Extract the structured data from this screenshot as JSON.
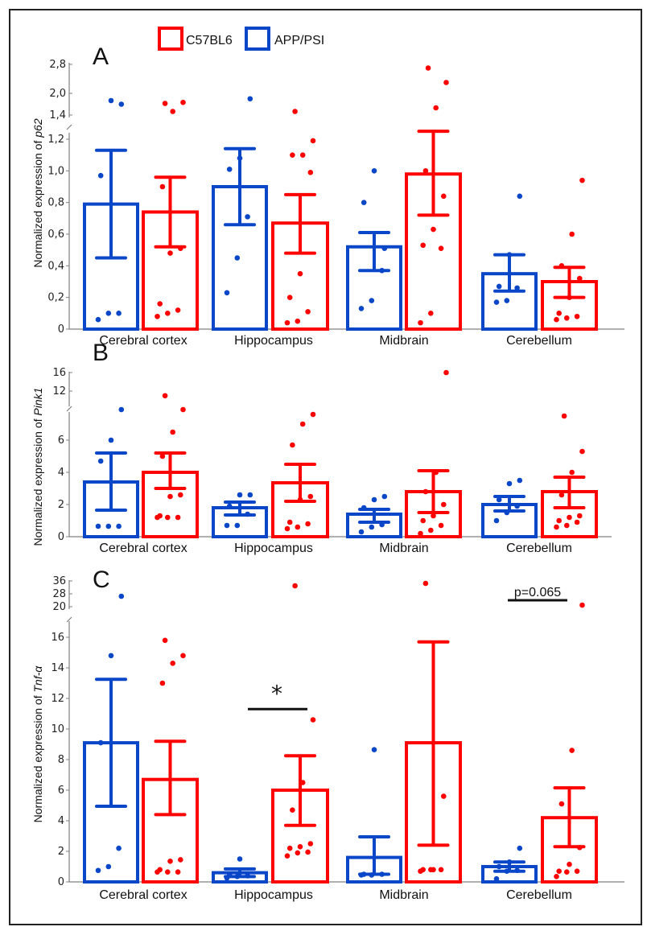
{
  "legend": [
    {
      "label": "C57BL6",
      "color": "#ff0000"
    },
    {
      "label": "APP/PSI",
      "color": "#0a46c8"
    }
  ],
  "colors": {
    "C57BL6": "#ff0000",
    "APP/PSI": "#0a46c8",
    "axis": "#808080",
    "text": "#111111"
  },
  "chart_data": [
    {
      "type": "bar",
      "panel": "A",
      "ylabel_prefix": "Normalized expression of ",
      "ylabel_gene": "p62",
      "categories": [
        "Cerebral cortex",
        "Hippocampus",
        "Midbrain",
        "Cerebellum"
      ],
      "series_order": [
        "APP/PSI",
        "C57BL6"
      ],
      "y_lower_ticks": [
        "0",
        "0,2",
        "0,4",
        "0,6",
        "0,8",
        "1,0",
        "1,2"
      ],
      "y_lower_tick_values": [
        0,
        0.2,
        0.4,
        0.6,
        0.8,
        1.0,
        1.2
      ],
      "y_upper_ticks": [
        "1,4",
        "2,0",
        "2,8"
      ],
      "y_upper_tick_values": [
        1.4,
        2.0,
        2.8
      ],
      "axis_break": true,
      "ylim_lower": [
        0,
        1.25
      ],
      "ylim_upper": [
        1.4,
        2.8
      ],
      "series": [
        {
          "name": "APP/PSI",
          "means": [
            0.79,
            0.9,
            0.52,
            0.35
          ],
          "err_low": [
            0.45,
            0.66,
            0.37,
            0.24
          ],
          "err_high": [
            1.13,
            1.14,
            0.61,
            0.47
          ],
          "points": [
            [
              0.06,
              0.1,
              0.1,
              0.97,
              1.8,
              1.7
            ],
            [
              0.23,
              0.45,
              0.71,
              1.01,
              1.08,
              1.85
            ],
            [
              0.13,
              0.18,
              0.37,
              0.8,
              1.0,
              0.51
            ],
            [
              0.17,
              0.18,
              0.26,
              0.27,
              0.47,
              0.84
            ]
          ]
        },
        {
          "name": "C57BL6",
          "means": [
            0.74,
            0.67,
            0.98,
            0.3
          ],
          "err_low": [
            0.52,
            0.48,
            0.72,
            0.2
          ],
          "err_high": [
            0.96,
            0.85,
            1.25,
            0.39
          ],
          "points": [
            [
              0.08,
              0.1,
              0.12,
              0.16,
              0.48,
              0.51,
              0.9,
              1.5,
              1.75,
              1.72
            ],
            [
              0.04,
              0.05,
              0.11,
              0.2,
              0.35,
              0.99,
              1.1,
              1.1,
              1.19,
              1.5
            ],
            [
              0.04,
              0.1,
              0.51,
              0.53,
              0.63,
              0.84,
              1.0,
              1.6,
              2.3,
              2.7
            ],
            [
              0.06,
              0.07,
              0.08,
              0.1,
              0.2,
              0.32,
              0.4,
              0.6,
              0.94
            ]
          ]
        }
      ]
    },
    {
      "type": "bar",
      "panel": "B",
      "ylabel_prefix": "Normalized expression of ",
      "ylabel_gene": "Pink1",
      "categories": [
        "Cerebral cortex",
        "Hippocampus",
        "Midbrain",
        "Cerebellum"
      ],
      "series_order": [
        "APP/PSI",
        "C57BL6"
      ],
      "y_lower_ticks": [
        "0",
        "2",
        "4",
        "6"
      ],
      "y_lower_tick_values": [
        0,
        2,
        4,
        6
      ],
      "y_upper_ticks": [
        "12",
        "16"
      ],
      "y_upper_tick_values": [
        12,
        16
      ],
      "axis_break": true,
      "ylim_lower": [
        0,
        7.8
      ],
      "ylim_upper": [
        10,
        16
      ],
      "series": [
        {
          "name": "APP/PSI",
          "means": [
            3.4,
            1.8,
            1.4,
            2.0
          ],
          "err_low": [
            1.65,
            1.35,
            0.9,
            1.6
          ],
          "err_high": [
            5.2,
            2.15,
            1.7,
            2.5
          ],
          "points": [
            [
              0.65,
              0.65,
              0.65,
              4.7,
              6.0,
              8.0
            ],
            [
              0.7,
              0.7,
              1.4,
              1.9,
              2.6,
              2.6
            ],
            [
              0.3,
              0.6,
              0.75,
              1.8,
              2.3,
              2.5
            ],
            [
              1.0,
              1.5,
              1.9,
              2.3,
              3.3,
              3.5
            ]
          ]
        },
        {
          "name": "C57BL6",
          "means": [
            4.0,
            3.35,
            2.8,
            2.8
          ],
          "err_low": [
            3.0,
            2.2,
            1.5,
            1.8
          ],
          "err_high": [
            5.2,
            4.5,
            4.1,
            3.7
          ],
          "points": [
            [
              1.2,
              1.2,
              1.2,
              1.3,
              2.5,
              2.6,
              5.0,
              6.5,
              8.0,
              11.0
            ],
            [
              0.5,
              0.6,
              0.8,
              0.9,
              2.3,
              2.5,
              5.7,
              7.0,
              7.6
            ],
            [
              0.2,
              0.4,
              0.7,
              1.0,
              1.3,
              2.0,
              2.8,
              4.0,
              16.0
            ],
            [
              0.6,
              0.7,
              0.9,
              1.0,
              1.2,
              1.3,
              2.6,
              4.0,
              5.3,
              7.5
            ]
          ]
        }
      ]
    },
    {
      "type": "bar",
      "panel": "C",
      "ylabel_prefix": "Normalized expression of ",
      "ylabel_gene": "Tnf-α",
      "categories": [
        "Cerebral cortex",
        "Hippocampus",
        "Midbrain",
        "Cerebellum"
      ],
      "series_order": [
        "APP/PSI",
        "C57BL6"
      ],
      "y_lower_ticks": [
        "0",
        "2",
        "4",
        "6",
        "8",
        "10",
        "12",
        "14",
        "16"
      ],
      "y_lower_tick_values": [
        0,
        2,
        4,
        6,
        8,
        10,
        12,
        14,
        16
      ],
      "y_upper_ticks": [
        "20",
        "28",
        "36"
      ],
      "y_upper_tick_values": [
        20,
        28,
        36
      ],
      "axis_break": true,
      "ylim_lower": [
        0,
        17
      ],
      "ylim_upper": [
        20,
        36
      ],
      "series": [
        {
          "name": "APP/PSI",
          "means": [
            9.1,
            0.6,
            1.6,
            1.0
          ],
          "err_low": [
            4.95,
            0.35,
            0.5,
            0.7
          ],
          "err_high": [
            13.25,
            0.85,
            2.95,
            1.3
          ],
          "points": [
            [
              0.75,
              1.0,
              2.2,
              9.1,
              14.8,
              26.5
            ],
            [
              0.25,
              0.35,
              0.4,
              0.5,
              1.5
            ],
            [
              0.45,
              0.45,
              0.5,
              0.5,
              8.65
            ],
            [
              0.2,
              0.7,
              0.75,
              1.0,
              1.3,
              2.2
            ]
          ]
        },
        {
          "name": "C57BL6",
          "means": [
            6.7,
            6.0,
            9.1,
            4.2
          ],
          "err_low": [
            4.4,
            3.7,
            2.4,
            2.3
          ],
          "err_high": [
            9.2,
            8.25,
            15.7,
            6.15
          ],
          "points": [
            [
              0.65,
              0.65,
              0.65,
              0.8,
              1.35,
              1.45,
              13.0,
              14.3,
              14.8,
              15.8
            ],
            [
              1.7,
              1.9,
              1.95,
              2.2,
              2.3,
              2.5,
              4.7,
              6.5,
              10.6,
              33.0
            ],
            [
              0.7,
              0.8,
              0.8,
              0.8,
              0.8,
              5.6,
              34.5
            ],
            [
              0.35,
              0.65,
              0.7,
              0.7,
              1.15,
              2.25,
              5.1,
              8.6,
              21.0
            ]
          ]
        }
      ],
      "annotations": [
        {
          "text": "*",
          "type": "significance",
          "between": [
            "Hippocampus APP/PSI",
            "Hippocampus C57BL6"
          ],
          "bar_y": 11.3
        },
        {
          "text": "p=0.065",
          "type": "p-value",
          "category": "Cerebellum",
          "bar_y": 37.5
        }
      ]
    }
  ]
}
